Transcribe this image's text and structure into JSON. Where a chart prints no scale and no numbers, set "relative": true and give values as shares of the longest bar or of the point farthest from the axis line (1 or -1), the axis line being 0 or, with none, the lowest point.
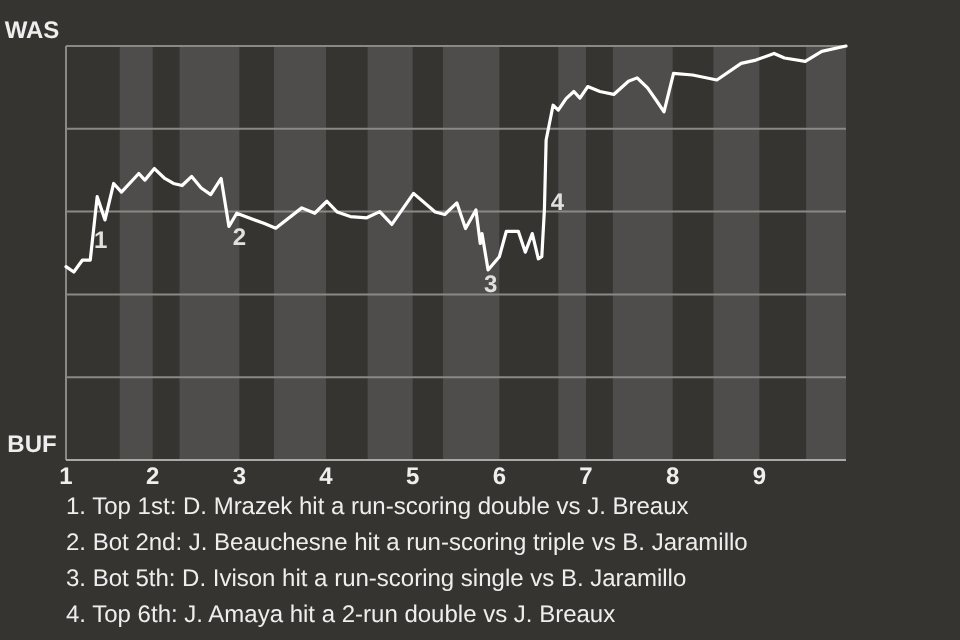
{
  "chart_data": {
    "type": "line",
    "relative": true,
    "grid": "y",
    "xlim": [
      1,
      10
    ],
    "xticks": [
      1,
      2,
      3,
      4,
      5,
      6,
      7,
      8,
      9
    ],
    "bands": [
      {
        "axis": "x",
        "from": 1.62,
        "to": 2,
        "color": "#4e4d4b"
      },
      {
        "axis": "x",
        "from": 2.31,
        "to": 3,
        "color": "#4e4d4b"
      },
      {
        "axis": "x",
        "from": 3.4,
        "to": 4,
        "color": "#4e4d4b"
      },
      {
        "axis": "x",
        "from": 4.48,
        "to": 5,
        "color": "#4e4d4b"
      },
      {
        "axis": "x",
        "from": 5.35,
        "to": 6,
        "color": "#4e4d4b"
      },
      {
        "axis": "x",
        "from": 6.68,
        "to": 7,
        "color": "#4e4d4b"
      },
      {
        "axis": "x",
        "from": 7.31,
        "to": 8,
        "color": "#4e4d4b"
      },
      {
        "axis": "x",
        "from": 8.47,
        "to": 9,
        "color": "#4e4d4b"
      },
      {
        "axis": "x",
        "from": 9.54,
        "to": 10,
        "color": "#4e4d4b"
      }
    ],
    "series": [
      {
        "color": "#ffffff",
        "x": [
          1.0,
          1.09,
          1.19,
          1.28,
          1.36,
          1.45,
          1.55,
          1.64,
          1.84,
          1.91,
          2.02,
          2.14,
          2.24,
          2.34,
          2.45,
          2.56,
          2.67,
          2.79,
          2.88,
          2.97,
          3.29,
          3.42,
          3.72,
          3.87,
          4.01,
          4.13,
          4.28,
          4.47,
          4.62,
          4.76,
          5.01,
          5.26,
          5.37,
          5.51,
          5.61,
          5.73,
          5.78,
          5.8,
          5.87,
          6.0,
          6.08,
          6.22,
          6.3,
          6.38,
          6.45,
          6.49,
          6.52,
          6.54,
          6.62,
          6.68,
          6.77,
          6.86,
          6.93,
          7.02,
          7.16,
          7.32,
          7.49,
          7.59,
          7.71,
          7.82,
          7.9,
          8.01,
          8.23,
          8.51,
          8.79,
          8.96,
          9.17,
          9.29,
          9.53,
          9.72,
          10
        ],
        "values": [
          0.467,
          0.454,
          0.483,
          0.483,
          0.636,
          0.58,
          0.668,
          0.647,
          0.692,
          0.676,
          0.704,
          0.68,
          0.668,
          0.663,
          0.685,
          0.657,
          0.641,
          0.68,
          0.564,
          0.596,
          0.571,
          0.56,
          0.609,
          0.596,
          0.625,
          0.599,
          0.588,
          0.585,
          0.6,
          0.569,
          0.644,
          0.599,
          0.593,
          0.621,
          0.559,
          0.604,
          0.523,
          0.547,
          0.459,
          0.491,
          0.552,
          0.552,
          0.502,
          0.547,
          0.486,
          0.491,
          0.604,
          0.773,
          0.857,
          0.845,
          0.873,
          0.89,
          0.874,
          0.902,
          0.89,
          0.883,
          0.915,
          0.923,
          0.899,
          0.866,
          0.841,
          0.934,
          0.93,
          0.918,
          0.958,
          0.966,
          0.982,
          0.971,
          0.963,
          0.987,
          1
        ]
      }
    ],
    "annotations": [
      "WAS",
      "BUF",
      {
        "text": "1",
        "x": 1.4,
        "y": 0.527
      },
      {
        "text": "2",
        "x": 3.0,
        "y": 0.535
      },
      {
        "text": "3",
        "x": 5.9,
        "y": 0.42
      },
      {
        "text": "4",
        "x": 6.67,
        "y": 0.62
      },
      "1. Top 1st: D. Mrazek hit a run-scoring double vs J. Breaux",
      "2. Bot 2nd: J. Beauchesne hit a run-scoring triple vs B. Jaramillo",
      "3. Bot 5th: D. Ivison hit a run-scoring single vs B. Jaramillo",
      "4. Top 6th: J. Amaya hit a 2-run double vs J. Breaux"
    ]
  }
}
